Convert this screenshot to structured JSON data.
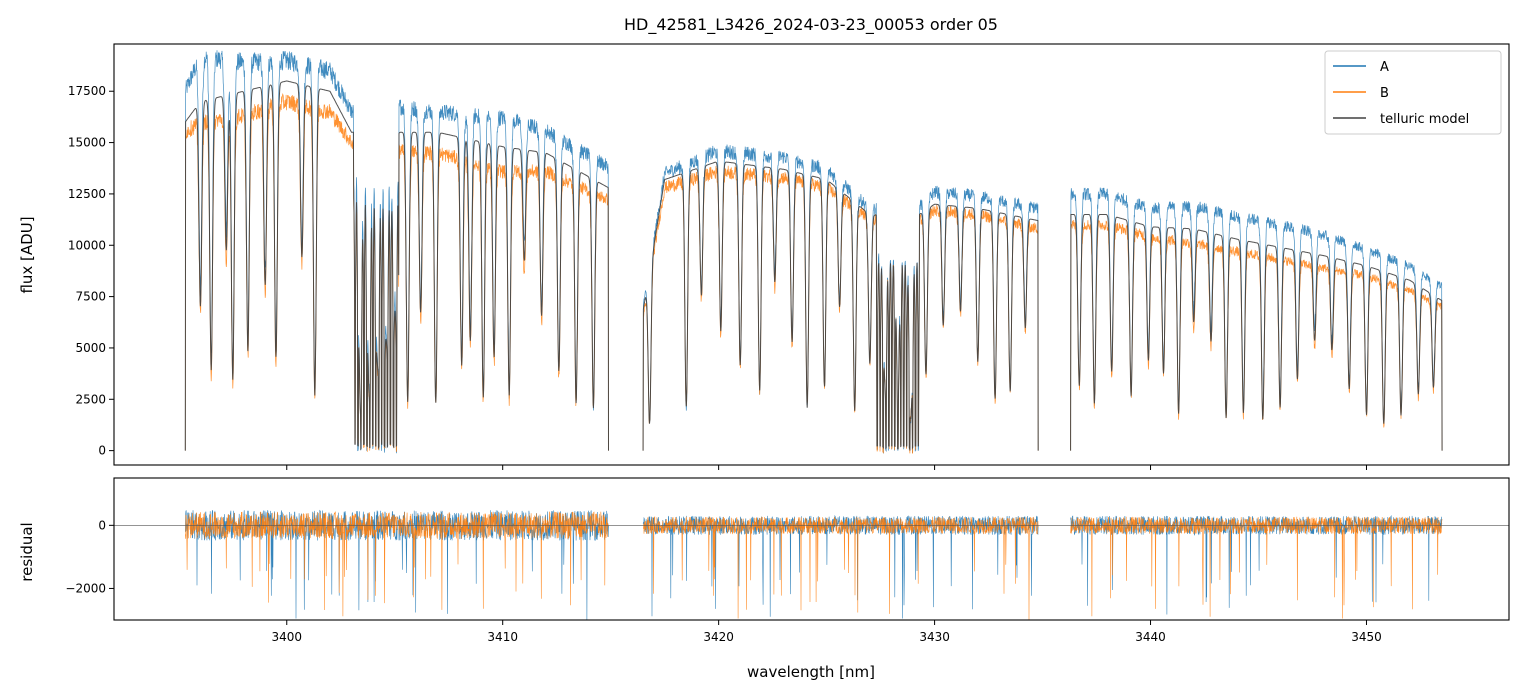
{
  "chart_data": [
    {
      "type": "line",
      "title": "HD_42581_L3426_2024-03-23_00053  order 05",
      "xlabel": "",
      "ylabel": "flux [ADU]",
      "xlim": [
        3392.0,
        3456.6
      ],
      "ylim": [
        -700,
        19800
      ],
      "y_ticks": [
        0,
        2500,
        5000,
        7500,
        10000,
        12500,
        15000,
        17500
      ],
      "y_tick_labels": [
        "0",
        "2500",
        "5000",
        "7500",
        "10000",
        "12500",
        "15000",
        "17500"
      ],
      "x_ticks": [
        3400,
        3410,
        3420,
        3430,
        3440,
        3450
      ],
      "x_tick_labels": [],
      "grid": false,
      "legend": "top-right",
      "segments_nm": [
        [
          3395.3,
          3414.9
        ],
        [
          3416.5,
          3434.8
        ],
        [
          3436.3,
          3453.5
        ]
      ],
      "series": [
        {
          "name": "A",
          "color": "#1f77b4",
          "envelope_x": [
            3395.3,
            3396,
            3398,
            3400,
            3402,
            3403,
            3405,
            3407,
            3410,
            3412,
            3414.9,
            3416.5,
            3417.5,
            3420,
            3423,
            3425,
            3427,
            3429,
            3430,
            3432,
            3434.8,
            3436.3,
            3438,
            3440,
            3442,
            3444,
            3446,
            3448,
            3450,
            3452,
            3453.5
          ],
          "envelope_y": [
            17500,
            19200,
            18900,
            19000,
            18500,
            16500,
            16800,
            16500,
            16200,
            15600,
            13800,
            7000,
            13500,
            14600,
            14300,
            13700,
            11800,
            11600,
            12600,
            12400,
            11800,
            12500,
            12500,
            11800,
            11900,
            11400,
            11000,
            10500,
            9800,
            9000,
            8000
          ]
        },
        {
          "name": "B",
          "color": "#ff7f0e",
          "envelope_x": [
            3395.3,
            3396,
            3398,
            3400,
            3402,
            3403,
            3405,
            3407,
            3410,
            3412,
            3414.9,
            3416.5,
            3417.5,
            3420,
            3423,
            3425,
            3427,
            3429,
            3430,
            3432,
            3434.8,
            3436.3,
            3438,
            3440,
            3442,
            3444,
            3446,
            3448,
            3450,
            3452,
            3453.5
          ],
          "envelope_y": [
            15500,
            16000,
            16300,
            17000,
            16500,
            15000,
            14600,
            14500,
            13600,
            13600,
            12200,
            6500,
            12800,
            13600,
            13300,
            12800,
            11300,
            11000,
            11700,
            11500,
            10800,
            11000,
            11000,
            10400,
            10100,
            9700,
            9300,
            8900,
            8500,
            7800,
            7000
          ]
        },
        {
          "name": "telluric model",
          "color": "#404040",
          "envelope_x": [
            3395.3,
            3396,
            3398,
            3400,
            3402,
            3403,
            3405,
            3407,
            3410,
            3412,
            3414.9,
            3416.5,
            3417.5,
            3420,
            3423,
            3425,
            3427,
            3429,
            3430,
            3432,
            3434.8,
            3436.3,
            3438,
            3440,
            3442,
            3444,
            3446,
            3448,
            3450,
            3452,
            3453.5
          ],
          "envelope_y": [
            16000,
            17000,
            17500,
            18000,
            17500,
            15500,
            15500,
            15500,
            14800,
            14500,
            12800,
            6800,
            13200,
            14100,
            13700,
            13200,
            11500,
            11300,
            12000,
            11800,
            11200,
            11500,
            11500,
            10900,
            10800,
            10300,
            9900,
            9500,
            9000,
            8300,
            7300
          ]
        }
      ],
      "absorption_lines_nm": [
        3396.0,
        3396.5,
        3397.2,
        3397.5,
        3398.2,
        3399.0,
        3399.5,
        3400.7,
        3401.3,
        3403.4,
        3403.8,
        3404.2,
        3404.6,
        3405.0,
        3405.6,
        3406.2,
        3406.9,
        3408.1,
        3408.5,
        3409.1,
        3409.6,
        3410.3,
        3411.0,
        3411.8,
        3412.6,
        3413.4,
        3414.2,
        3416.8,
        3418.5,
        3419.2,
        3420.1,
        3421.0,
        3421.9,
        3422.6,
        3423.4,
        3424.1,
        3424.9,
        3425.6,
        3426.3,
        3427.0,
        3427.7,
        3428.3,
        3428.9,
        3429.6,
        3430.4,
        3431.2,
        3432.0,
        3432.8,
        3433.5,
        3434.2,
        3436.7,
        3437.4,
        3438.2,
        3439.1,
        3439.9,
        3440.6,
        3441.3,
        3442.0,
        3442.8,
        3443.5,
        3444.3,
        3445.2,
        3446.0,
        3446.8,
        3447.6,
        3448.4,
        3449.2,
        3450.0,
        3450.8,
        3451.6,
        3452.4,
        3453.1
      ]
    },
    {
      "type": "line",
      "title": "",
      "xlabel": "wavelength [nm]",
      "ylabel": "residual",
      "xlim": [
        3392.0,
        3456.6
      ],
      "ylim": [
        -3000,
        1500
      ],
      "y_ticks": [
        0,
        -2000
      ],
      "y_tick_labels": [
        "0",
        "−2000"
      ],
      "x_ticks": [
        3400,
        3410,
        3420,
        3430,
        3440,
        3450
      ],
      "x_tick_labels": [
        "3400",
        "3410",
        "3420",
        "3430",
        "3440",
        "3450"
      ],
      "zero_line": true,
      "grid": false,
      "series": [
        {
          "name": "A",
          "color": "#1f77b4",
          "noise_amplitude": 500,
          "spike_min": -3000
        },
        {
          "name": "B",
          "color": "#ff7f0e",
          "noise_amplitude": 450,
          "spike_min": -3000
        }
      ]
    }
  ]
}
